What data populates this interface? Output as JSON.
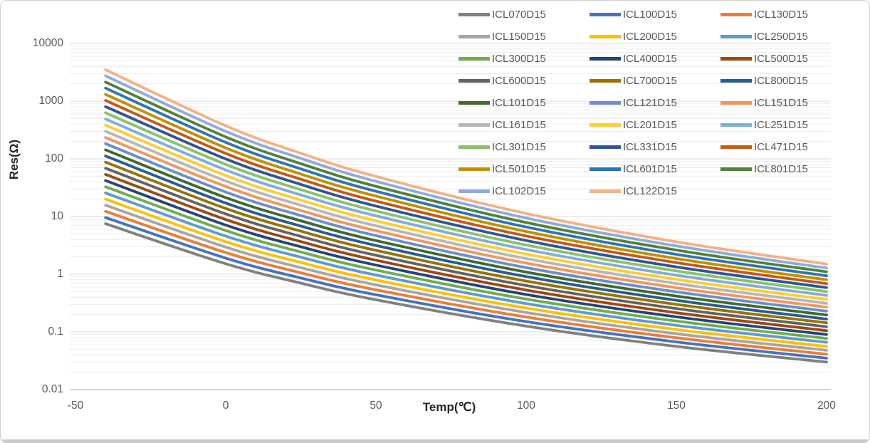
{
  "chart_data": {
    "type": "line",
    "title": "",
    "x_label": "Temp(℃)",
    "y_label": "Res(Ω)",
    "y_scale": "log",
    "x_range": [
      -50,
      200
    ],
    "y_range": [
      0.01,
      10000
    ],
    "x_ticks": [
      "-50",
      "0",
      "50",
      "100",
      "150",
      "200"
    ],
    "y_ticks": [
      "10000",
      "1000",
      "100",
      "10",
      "1",
      "0.1",
      "0.01"
    ],
    "grid": {
      "major": true,
      "minor_log": true,
      "vertical": false
    },
    "legend_position": "top-right",
    "colors": {
      "major_grid": "#d9d9d9",
      "minor_grid": "#ececec",
      "axis_line": "#bfbfbf",
      "tick_text": "#595959",
      "axis_title_text": "#262626"
    },
    "x": [
      -40,
      0,
      25,
      50,
      100,
      150,
      200
    ],
    "series": [
      {
        "name": "ICL070D15",
        "color": "#808080",
        "values": [
          7.5,
          1.52,
          0.7,
          0.36,
          0.126,
          0.056,
          0.03
        ]
      },
      {
        "name": "ICL100D15",
        "color": "#4472C4",
        "values": [
          9.6,
          1.9,
          0.86,
          0.44,
          0.151,
          0.067,
          0.035
        ]
      },
      {
        "name": "ICL130D15",
        "color": "#ED7D31",
        "values": [
          12.3,
          2.37,
          1.06,
          0.536,
          0.181,
          0.079,
          0.041
        ]
      },
      {
        "name": "ICL150D15",
        "color": "#A5A5A5",
        "values": [
          15.7,
          2.95,
          1.3,
          0.653,
          0.217,
          0.093,
          0.048
        ]
      },
      {
        "name": "ICL200D15",
        "color": "#FFC000",
        "values": [
          20.0,
          3.67,
          1.6,
          0.794,
          0.259,
          0.11,
          0.056
        ]
      },
      {
        "name": "ICL250D15",
        "color": "#5B9BD5",
        "values": [
          25.6,
          4.58,
          1.97,
          0.968,
          0.31,
          0.13,
          0.066
        ]
      },
      {
        "name": "ICL300D15",
        "color": "#70AD47",
        "values": [
          32.8,
          5.71,
          2.43,
          1.18,
          0.371,
          0.154,
          0.077
        ]
      },
      {
        "name": "ICL400D15",
        "color": "#264478",
        "values": [
          42.0,
          7.11,
          2.99,
          1.44,
          0.445,
          0.182,
          0.09
        ]
      },
      {
        "name": "ICL500D15",
        "color": "#9E480E",
        "values": [
          53.7,
          8.87,
          3.68,
          1.75,
          0.532,
          0.215,
          0.105
        ]
      },
      {
        "name": "ICL600D15",
        "color": "#636363",
        "values": [
          68.7,
          11.1,
          4.53,
          2.13,
          0.637,
          0.254,
          0.123
        ]
      },
      {
        "name": "ICL700D15",
        "color": "#997300",
        "values": [
          87.7,
          13.8,
          5.57,
          2.59,
          0.762,
          0.3,
          0.144
        ]
      },
      {
        "name": "ICL800D15",
        "color": "#255E91",
        "values": [
          112,
          17.1,
          6.84,
          3.15,
          0.91,
          0.353,
          0.167
        ]
      },
      {
        "name": "ICL101D15",
        "color": "#43682B",
        "values": [
          143,
          21.3,
          8.42,
          3.83,
          1.09,
          0.418,
          0.196
        ]
      },
      {
        "name": "ICL121D15",
        "color": "#698ED0",
        "values": [
          183,
          26.6,
          10.4,
          4.67,
          1.3,
          0.494,
          0.229
        ]
      },
      {
        "name": "ICL151D15",
        "color": "#F1975A",
        "values": [
          234,
          33.2,
          12.7,
          5.68,
          1.56,
          0.583,
          0.268
        ]
      },
      {
        "name": "ICL161D15",
        "color": "#B7B7B7",
        "values": [
          300,
          41.3,
          15.7,
          6.92,
          1.87,
          0.689,
          0.313
        ]
      },
      {
        "name": "ICL201D15",
        "color": "#FFCD33",
        "values": [
          383,
          51.5,
          19.3,
          8.42,
          2.24,
          0.814,
          0.366
        ]
      },
      {
        "name": "ICL251D15",
        "color": "#7CAFDD",
        "values": [
          490,
          64.1,
          23.7,
          10.3,
          2.68,
          0.962,
          0.429
        ]
      },
      {
        "name": "ICL301D15",
        "color": "#8CC168",
        "values": [
          627,
          80.0,
          29.2,
          12.5,
          3.21,
          1.14,
          0.501
        ]
      },
      {
        "name": "ICL331D15",
        "color": "#2F5597",
        "values": [
          802,
          99.7,
          36.0,
          15.2,
          3.84,
          1.34,
          0.586
        ]
      },
      {
        "name": "ICL471D15",
        "color": "#C55A11",
        "values": [
          1030,
          124,
          44.3,
          18.5,
          4.6,
          1.59,
          0.686
        ]
      },
      {
        "name": "ICL501D15",
        "color": "#BF9000",
        "values": [
          1310,
          155,
          54.5,
          22.6,
          5.5,
          1.87,
          0.8
        ]
      },
      {
        "name": "ICL601D15",
        "color": "#2E75B6",
        "values": [
          1680,
          193,
          67.0,
          27.4,
          6.59,
          2.21,
          0.94
        ]
      },
      {
        "name": "ICL801D15",
        "color": "#538135",
        "values": [
          2140,
          240,
          82.5,
          33.4,
          7.88,
          2.62,
          1.1
        ]
      },
      {
        "name": "ICL102D15",
        "color": "#8FAADC",
        "values": [
          2740,
          300,
          102,
          40.7,
          9.43,
          3.09,
          1.28
        ]
      },
      {
        "name": "ICL122D15",
        "color": "#F4B183",
        "values": [
          3510,
          374,
          125,
          49.6,
          11.3,
          3.65,
          1.5
        ]
      }
    ]
  }
}
